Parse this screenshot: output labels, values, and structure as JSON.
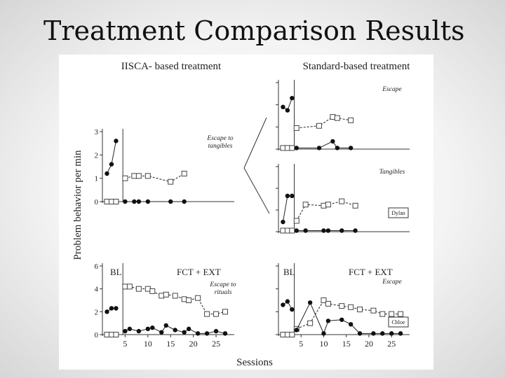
{
  "slide": {
    "title": "Treatment Comparison Results"
  },
  "figure": {
    "left_heading": "IISCA- based treatment",
    "right_heading": "Standard-based treatment",
    "y_axis_label": "Problem behavior per min",
    "x_axis_label": "Sessions"
  },
  "chart_data": [
    {
      "id": "dylan-iisca",
      "type": "line",
      "annotation": "Escape to tangibles",
      "xlim": [
        0,
        29
      ],
      "ylim": [
        0,
        3
      ],
      "y_ticks": [
        "0",
        "1",
        "2",
        "3"
      ],
      "phase_line_x": 4.5,
      "series": [
        {
          "marker": "filled-circle",
          "x": [
            1,
            2,
            3
          ],
          "y": [
            1.2,
            1.6,
            2.6
          ]
        },
        {
          "marker": "open-square",
          "x": [
            1,
            2,
            3
          ],
          "y": [
            0,
            0,
            0
          ]
        },
        {
          "marker": "open-square",
          "x": [
            5,
            7,
            8,
            10,
            15,
            18
          ],
          "y": [
            1.0,
            1.1,
            1.1,
            1.1,
            0.85,
            1.2
          ]
        },
        {
          "marker": "filled-circle",
          "x": [
            5,
            7,
            8,
            10,
            15,
            18
          ],
          "y": [
            0,
            0,
            0,
            0,
            0,
            0
          ]
        }
      ]
    },
    {
      "id": "dylan-standard-escape",
      "type": "line",
      "annotation": "Escape",
      "xlim": [
        0,
        29
      ],
      "ylim": [
        0,
        3
      ],
      "phase_line_x": 3.5,
      "series": [
        {
          "marker": "filled-circle",
          "x": [
            1,
            2,
            3
          ],
          "y": [
            1.9,
            1.75,
            2.3
          ]
        },
        {
          "marker": "open-square",
          "x": [
            1,
            2,
            3
          ],
          "y": [
            0.05,
            0.05,
            0.05
          ]
        },
        {
          "marker": "open-square",
          "x": [
            4,
            9,
            12,
            13,
            16
          ],
          "y": [
            0.95,
            1.05,
            1.45,
            1.4,
            1.3
          ]
        },
        {
          "marker": "filled-circle",
          "x": [
            4,
            9,
            12,
            13,
            16
          ],
          "y": [
            0.05,
            0.05,
            0.35,
            0.05,
            0.05
          ]
        }
      ]
    },
    {
      "id": "dylan-standard-tangibles",
      "type": "line",
      "annotation": "Tangibles",
      "legend_box": "Dylan",
      "xlim": [
        0,
        29
      ],
      "ylim": [
        0,
        3
      ],
      "phase_line_x": 3.5,
      "series": [
        {
          "marker": "filled-circle",
          "x": [
            1,
            2,
            3
          ],
          "y": [
            0.45,
            1.65,
            1.65
          ]
        },
        {
          "marker": "open-square",
          "x": [
            1,
            2,
            3
          ],
          "y": [
            0.05,
            0.05,
            0.05
          ]
        },
        {
          "marker": "open-square",
          "x": [
            4,
            6,
            10,
            11,
            14,
            17
          ],
          "y": [
            0.5,
            1.25,
            1.2,
            1.25,
            1.4,
            1.2
          ]
        },
        {
          "marker": "filled-circle",
          "x": [
            4,
            6,
            10,
            11,
            14,
            17
          ],
          "y": [
            0.05,
            0.05,
            0.05,
            0.05,
            0.05,
            0.05
          ]
        }
      ]
    },
    {
      "id": "chloe-iisca",
      "type": "line",
      "phase_labels": [
        "BL",
        "FCT + EXT"
      ],
      "annotation": "Escape to rituals",
      "xlim": [
        0,
        29
      ],
      "ylim": [
        0,
        6
      ],
      "y_ticks": [
        "0",
        "2",
        "4",
        "6"
      ],
      "x_ticks": [
        "5",
        "10",
        "15",
        "20",
        "25"
      ],
      "phase_line_x": 4.5,
      "series": [
        {
          "marker": "filled-circle",
          "x": [
            1,
            2,
            3
          ],
          "y": [
            2.0,
            2.3,
            2.3
          ]
        },
        {
          "marker": "open-square",
          "x": [
            1,
            2,
            3
          ],
          "y": [
            0,
            0,
            0
          ]
        },
        {
          "marker": "open-square",
          "x": [
            5,
            6,
            8,
            10,
            11,
            13,
            14,
            16,
            18,
            19,
            21,
            23,
            25,
            27
          ],
          "y": [
            4.2,
            4.2,
            4.0,
            4.0,
            3.8,
            3.4,
            3.5,
            3.4,
            3.1,
            3.0,
            3.2,
            1.8,
            1.8,
            2.0
          ]
        },
        {
          "marker": "filled-circle",
          "x": [
            5,
            6,
            8,
            10,
            11,
            13,
            14,
            16,
            18,
            19,
            21,
            23,
            25,
            27
          ],
          "y": [
            0.3,
            0.5,
            0.3,
            0.5,
            0.6,
            0.2,
            0.8,
            0.4,
            0.2,
            0.5,
            0.1,
            0.1,
            0.3,
            0.1
          ]
        }
      ]
    },
    {
      "id": "chloe-standard",
      "type": "line",
      "phase_labels": [
        "BL",
        "FCT + EXT"
      ],
      "annotation": "Escape",
      "legend_box": "Chloe",
      "xlim": [
        0,
        29
      ],
      "ylim": [
        0,
        6
      ],
      "x_ticks": [
        "5",
        "10",
        "15",
        "20",
        "25"
      ],
      "phase_line_x": 3.5,
      "series": [
        {
          "marker": "filled-circle",
          "x": [
            1,
            2,
            3
          ],
          "y": [
            2.6,
            2.9,
            2.2
          ]
        },
        {
          "marker": "open-square",
          "x": [
            1,
            2,
            3
          ],
          "y": [
            0,
            0,
            0
          ]
        },
        {
          "marker": "open-square",
          "x": [
            4,
            7,
            10,
            11,
            14,
            16,
            18,
            21,
            23,
            25,
            27
          ],
          "y": [
            0.5,
            1.0,
            3.0,
            2.7,
            2.5,
            2.4,
            2.2,
            2.1,
            1.8,
            1.8,
            1.8
          ]
        },
        {
          "marker": "filled-circle",
          "x": [
            4,
            7,
            10,
            11,
            14,
            16,
            18,
            21,
            23,
            25,
            27
          ],
          "y": [
            0.4,
            2.8,
            0.1,
            1.2,
            1.3,
            0.9,
            0.1,
            0.1,
            0.1,
            0.1,
            0.1
          ]
        }
      ]
    }
  ]
}
